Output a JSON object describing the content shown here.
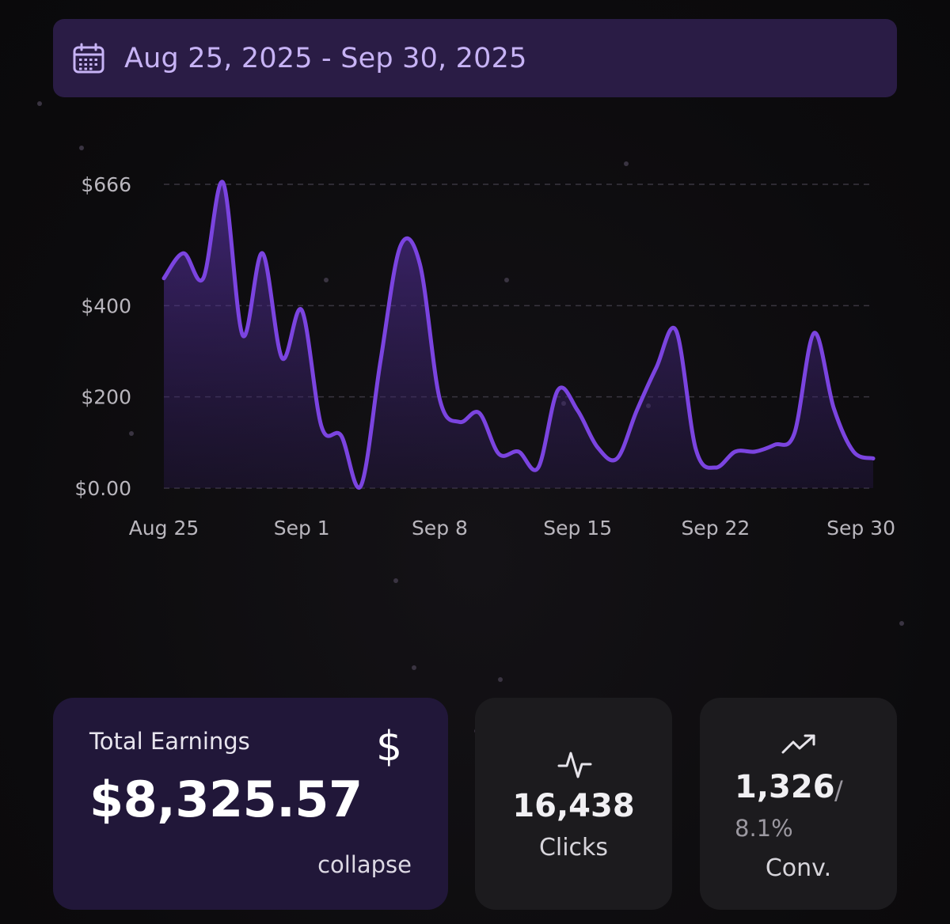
{
  "date_range": {
    "label": "Aug 25, 2025 - Sep 30, 2025",
    "icon": "calendar-icon"
  },
  "chart_data": {
    "type": "area",
    "y_tick_labels": [
      "$666",
      "$400",
      "$200",
      "$0.00"
    ],
    "y_ticks": [
      666,
      400,
      200,
      0
    ],
    "ylim": [
      0,
      666
    ],
    "x_tick_labels": [
      "Aug 25",
      "Sep 1",
      "Sep 8",
      "Sep 15",
      "Sep 22",
      "Sep 30"
    ],
    "x_ticks": [
      "2025-08-25",
      "2025-09-01",
      "2025-09-08",
      "2025-09-15",
      "2025-09-22",
      "2025-09-30"
    ],
    "grid": true,
    "line_color": "#7b44e0",
    "series": [
      {
        "x": [
          "2025-08-25",
          "2025-08-26",
          "2025-08-27",
          "2025-08-28",
          "2025-08-29",
          "2025-08-30",
          "2025-08-31",
          "2025-09-01",
          "2025-09-02",
          "2025-09-03",
          "2025-09-04",
          "2025-09-05",
          "2025-09-06",
          "2025-09-07",
          "2025-09-08",
          "2025-09-09",
          "2025-09-10",
          "2025-09-11",
          "2025-09-12",
          "2025-09-13",
          "2025-09-14",
          "2025-09-15",
          "2025-09-16",
          "2025-09-17",
          "2025-09-18",
          "2025-09-19",
          "2025-09-20",
          "2025-09-21",
          "2025-09-22",
          "2025-09-23",
          "2025-09-24",
          "2025-09-25",
          "2025-09-26",
          "2025-09-27",
          "2025-09-28",
          "2025-09-29",
          "2025-09-30"
        ],
        "values": [
          460,
          515,
          460,
          670,
          335,
          515,
          285,
          390,
          135,
          115,
          5,
          280,
          530,
          490,
          195,
          145,
          165,
          75,
          80,
          45,
          215,
          170,
          90,
          65,
          170,
          265,
          345,
          85,
          45,
          80,
          80,
          95,
          120,
          340,
          175,
          80,
          65
        ]
      }
    ]
  },
  "cards": {
    "earnings": {
      "title": "Total Earnings",
      "icon": "dollar-icon",
      "symbol": "$",
      "value": "$8,325.57",
      "link": "collapse"
    },
    "clicks": {
      "icon": "pulse-icon",
      "value": "16,438",
      "label": "Clicks"
    },
    "conversions": {
      "icon": "trending-up-icon",
      "value": "1,326",
      "separator": "/",
      "rate": "8.1%",
      "label": "Conv."
    }
  },
  "colors": {
    "accent": "#7b44e0",
    "date_text": "#c7b3f5",
    "date_bar": "#2a1c45",
    "earnings_card": "#211739",
    "stat_card": "#1c1b1e"
  }
}
